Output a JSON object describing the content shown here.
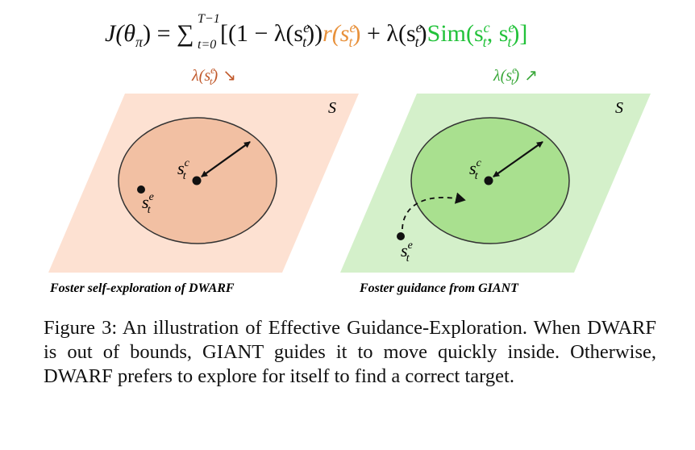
{
  "equation": {
    "lhs": "J(θ",
    "lhs_sub": "π",
    "lhs_close": ") =",
    "sum_upper": "T−1",
    "sum_lower": "t=0",
    "open": "[(1 − λ(s",
    "se_sup": "e",
    "se_sub": "t",
    "mid1": "))",
    "reward": "r(s",
    "reward_close": ")",
    "plus": " + λ(s",
    "mid2": ")",
    "sim": "Sim(s",
    "sim_sup_c": "c",
    "comma": ", s",
    "sim_close": ")]"
  },
  "left_panel": {
    "lambda_label": "λ(s",
    "lambda_sup": "e",
    "lambda_sub": "t",
    "lambda_close": ")",
    "arrow_symbol": "↘",
    "space_label": "S",
    "center_label": "s",
    "center_sup": "c",
    "center_sub": "t",
    "point_label": "s",
    "point_sup": "e",
    "point_sub": "t",
    "caption": "Foster self-exploration of DWARF",
    "colors": {
      "panel": "#fde1d2",
      "circle": "#f2c0a3",
      "label": "#c0582a"
    }
  },
  "right_panel": {
    "lambda_label": "λ(s",
    "lambda_sup": "e",
    "lambda_sub": "t",
    "lambda_close": ")",
    "arrow_symbol": "↗",
    "space_label": "S",
    "center_label": "s",
    "center_sup": "c",
    "center_sub": "t",
    "point_label": "s",
    "point_sup": "e",
    "point_sub": "t",
    "caption": "Foster guidance from GIANT",
    "colors": {
      "panel": "#d4f0ca",
      "circle": "#a9e08f",
      "label": "#3aa83a"
    }
  },
  "figure_caption": "Figure 3: An illustration of Effective Guidance-Exploration. When DWARF is out of bounds, GIANT guides it to move quickly inside. Otherwise, DWARF prefers to explore for itself to find a correct target."
}
